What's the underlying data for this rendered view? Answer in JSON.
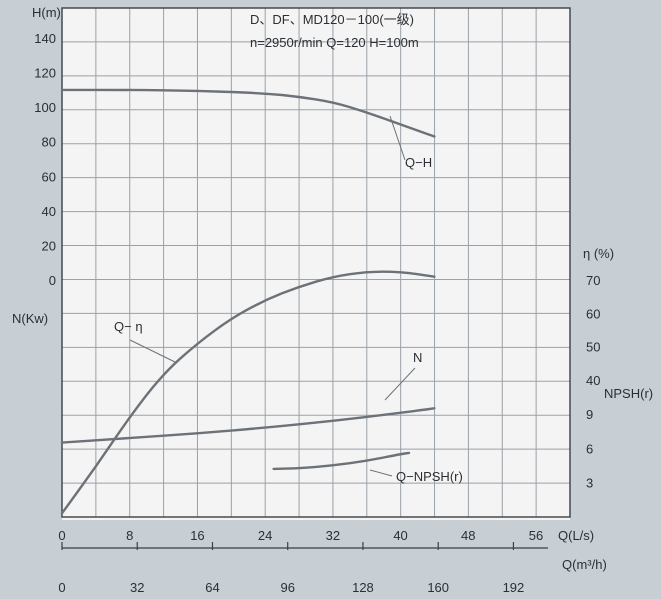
{
  "chart_data": {
    "type": "line",
    "title": "D、DF、MD120－100(一级)",
    "subtitle": "n=2950r/min  Q=120  H=100m",
    "x_axis": {
      "label": "Q(L/s)",
      "range": [
        0,
        56
      ],
      "ticks": [
        "0",
        "8",
        "16",
        "24",
        "32",
        "40",
        "48",
        "56"
      ]
    },
    "x2_axis": {
      "label": "Q(m³/h)",
      "range": [
        0,
        201.6
      ],
      "ticks": [
        "0",
        "32",
        "64",
        "96",
        "128",
        "160",
        "192"
      ]
    },
    "y_head_axis": {
      "label": "H(m)",
      "range": [
        0,
        150
      ],
      "ticks": [
        "0",
        "20",
        "40",
        "60",
        "80",
        "100",
        "120",
        "140"
      ]
    },
    "y_power_axis": {
      "label": "N(Kw)"
    },
    "y_eff_axis": {
      "label": "η (%)",
      "range": [
        0,
        90
      ],
      "ticks": [
        "40",
        "50",
        "60",
        "70"
      ]
    },
    "y_npsh_axis": {
      "label": "NPSH(r)",
      "range": [
        0,
        9
      ],
      "ticks": [
        "3",
        "6",
        "9"
      ]
    },
    "series": [
      {
        "name": "Q−H",
        "axis": "head",
        "points": [
          [
            0,
            110
          ],
          [
            8,
            110
          ],
          [
            16,
            109.5
          ],
          [
            24,
            108
          ],
          [
            28,
            106
          ],
          [
            32,
            103
          ],
          [
            36,
            97
          ],
          [
            40,
            90
          ],
          [
            44,
            83
          ]
        ]
      },
      {
        "name": "Q− η",
        "axis": "eff",
        "points": [
          [
            0,
            0
          ],
          [
            4,
            14
          ],
          [
            8,
            29
          ],
          [
            12,
            42
          ],
          [
            16,
            51
          ],
          [
            20,
            58.5
          ],
          [
            24,
            64
          ],
          [
            28,
            68
          ],
          [
            32,
            71
          ],
          [
            36,
            72.5
          ],
          [
            40,
            72.5
          ],
          [
            44,
            71
          ]
        ]
      },
      {
        "name": "N",
        "axis": "npsh",
        "points": [
          [
            0,
            6.5
          ],
          [
            8,
            6.9
          ],
          [
            16,
            7.3
          ],
          [
            24,
            7.8
          ],
          [
            32,
            8.4
          ],
          [
            40,
            9.1
          ],
          [
            44,
            9.5
          ]
        ]
      },
      {
        "name": "Q−NPSH(r)",
        "axis": "npsh",
        "points": [
          [
            25,
            4.2
          ],
          [
            28,
            4.25
          ],
          [
            32,
            4.5
          ],
          [
            36,
            4.9
          ],
          [
            40,
            5.5
          ],
          [
            41,
            5.6
          ]
        ]
      }
    ],
    "grid": true,
    "background": "#c7cfd5",
    "plot_background": "#f4f4f4",
    "curve_color": "#6c7278"
  }
}
